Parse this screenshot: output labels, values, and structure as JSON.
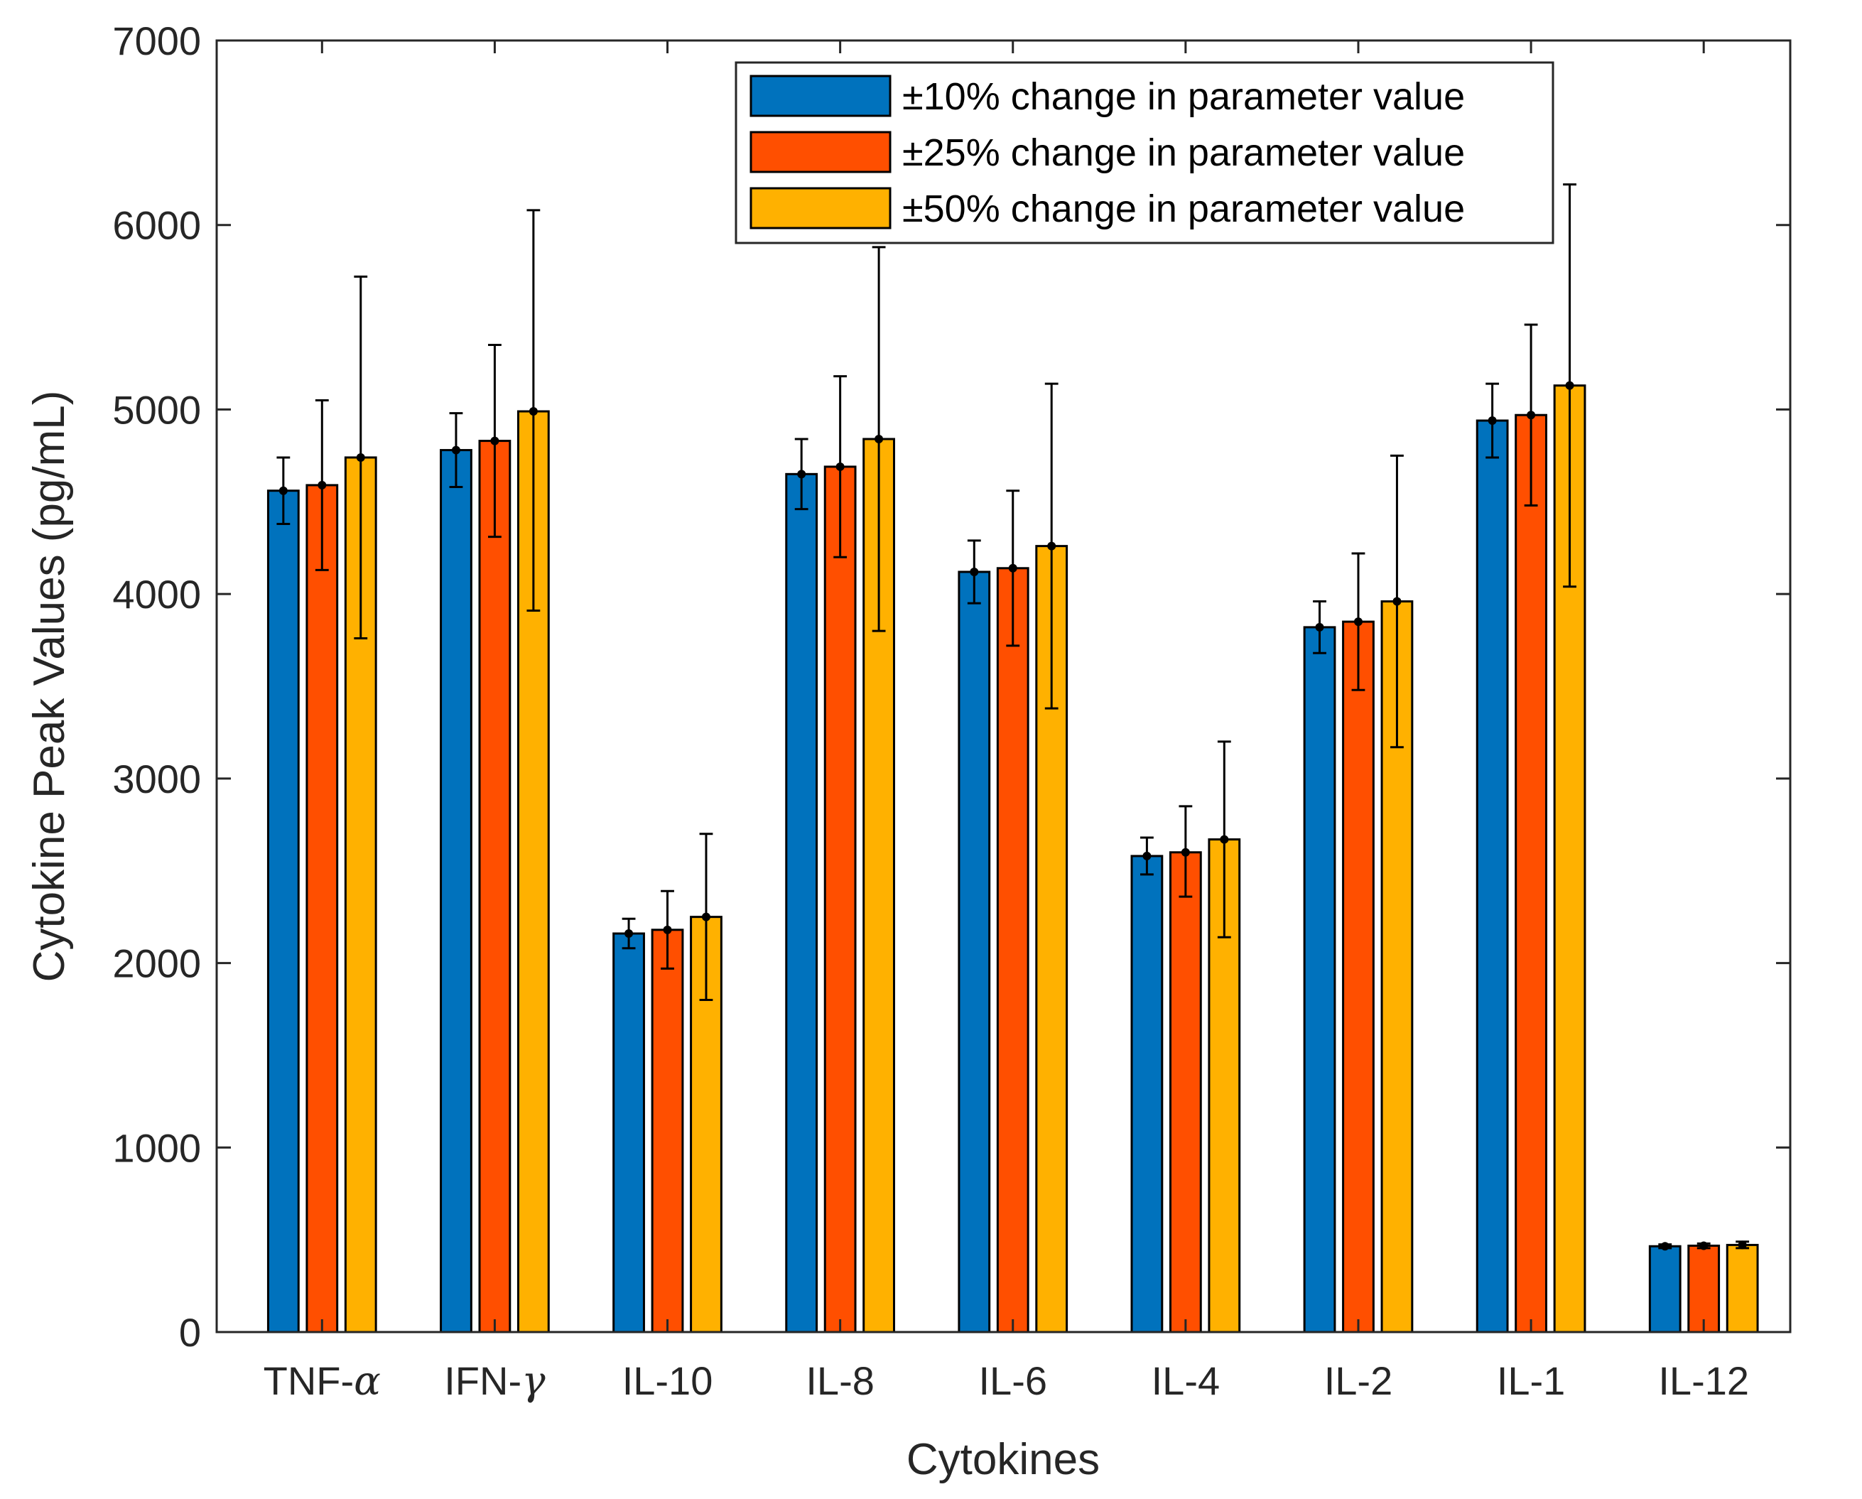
{
  "chart_data": {
    "type": "bar",
    "title": "",
    "xlabel": "Cytokines",
    "ylabel": "Cytokine Peak Values (pg/mL)",
    "ylim": [
      0,
      7000
    ],
    "yticks": [
      "0",
      "1000",
      "2000",
      "3000",
      "4000",
      "5000",
      "6000",
      "7000"
    ],
    "legend_position": "top-center",
    "grid": false,
    "categories": [
      {
        "prefix": "TNF-",
        "greek": "α"
      },
      {
        "prefix": "IFN-",
        "greek": "γ"
      },
      {
        "prefix": "IL-10",
        "greek": ""
      },
      {
        "prefix": "IL-8",
        "greek": ""
      },
      {
        "prefix": "IL-6",
        "greek": ""
      },
      {
        "prefix": "IL-4",
        "greek": ""
      },
      {
        "prefix": "IL-2",
        "greek": ""
      },
      {
        "prefix": "IL-1",
        "greek": ""
      },
      {
        "prefix": "IL-12",
        "greek": ""
      }
    ],
    "series": [
      {
        "name": "±10% change in parameter value",
        "color": "#0072BD",
        "values": [
          4560,
          4780,
          2160,
          4650,
          4120,
          2580,
          3820,
          4940,
          465
        ],
        "err_low": [
          4380,
          4580,
          2080,
          4460,
          3950,
          2480,
          3680,
          4740,
          455
        ],
        "err_high": [
          4740,
          4980,
          2240,
          4840,
          4290,
          2680,
          3960,
          5140,
          475
        ]
      },
      {
        "name": "±25% change in parameter value",
        "color": "#FF4F00",
        "values": [
          4590,
          4830,
          2180,
          4690,
          4140,
          2600,
          3850,
          4970,
          468
        ],
        "err_low": [
          4130,
          4310,
          1970,
          4200,
          3720,
          2360,
          3480,
          4480,
          455
        ],
        "err_high": [
          5050,
          5350,
          2390,
          5180,
          4560,
          2850,
          4220,
          5460,
          480
        ]
      },
      {
        "name": "±50% change in parameter value",
        "color": "#FFB100",
        "values": [
          4740,
          4990,
          2250,
          4840,
          4260,
          2670,
          3960,
          5130,
          472
        ],
        "err_low": [
          3760,
          3910,
          1800,
          3800,
          3380,
          2140,
          3170,
          4040,
          455
        ],
        "err_high": [
          5720,
          6080,
          2700,
          5880,
          5140,
          3200,
          4750,
          6220,
          490
        ]
      }
    ]
  }
}
